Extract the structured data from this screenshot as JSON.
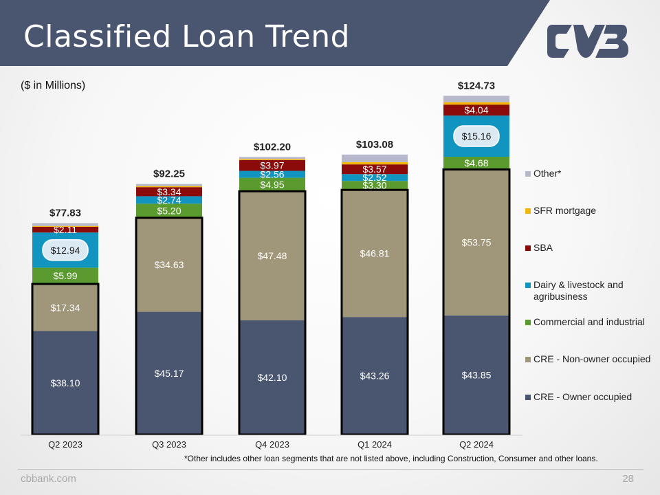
{
  "slide": {
    "title": "Classified Loan Trend",
    "units_note": "($ in Millions)",
    "footnote": "*Other includes other loan segments that are not listed above, including Construction, Consumer and other loans.",
    "footer_site": "cbbank.com",
    "page_number": "28",
    "header_color": "#4a5570"
  },
  "chart_data": {
    "type": "bar",
    "stacked": true,
    "categories": [
      "Q2 2023",
      "Q3 2023",
      "Q4 2023",
      "Q1 2024",
      "Q2 2024"
    ],
    "totals": [
      "$77.83",
      "$92.25",
      "$102.20",
      "$103.08",
      "$124.73"
    ],
    "total_values": [
      77.83,
      92.25,
      102.2,
      103.08,
      124.73
    ],
    "ylim": [
      0,
      130
    ],
    "grid": false,
    "legend_position": "right",
    "series": [
      {
        "name": "CRE - Owner occupied",
        "color": "#4a5570",
        "values": [
          38.1,
          45.17,
          42.1,
          43.26,
          43.85
        ],
        "labels": [
          "$38.10",
          "$45.17",
          "$42.10",
          "$43.26",
          "$43.85"
        ]
      },
      {
        "name": "CRE - Non-owner occupied",
        "color": "#a0977a",
        "values": [
          17.34,
          34.63,
          47.48,
          46.81,
          53.75
        ],
        "labels": [
          "$17.34",
          "$34.63",
          "$47.48",
          "$46.81",
          "$53.75"
        ]
      },
      {
        "name": "Commercial and industrial",
        "color": "#5b9a2f",
        "values": [
          5.99,
          5.2,
          4.95,
          3.3,
          4.68
        ],
        "labels": [
          "$5.99",
          "$5.20",
          "$4.95",
          "$3.30",
          "$4.68"
        ]
      },
      {
        "name": "Dairy & livestock and agribusiness",
        "color": "#1294c0",
        "values": [
          12.94,
          2.74,
          2.56,
          2.52,
          15.16
        ],
        "labels": [
          "$12.94",
          "$2.74",
          "$2.56",
          "$2.52",
          "$15.16"
        ]
      },
      {
        "name": "SBA",
        "color": "#8b0a0a",
        "values": [
          2.11,
          3.34,
          3.97,
          3.57,
          4.04
        ],
        "labels": [
          "$2.11",
          "$3.34",
          "$3.97",
          "$3.57",
          "$4.04"
        ]
      },
      {
        "name": "SFR mortgage",
        "color": "#f2b705",
        "values": [
          0.3,
          0.4,
          0.4,
          0.8,
          0.9
        ],
        "labels": [
          "",
          "",
          "",
          "",
          ""
        ]
      },
      {
        "name": "Other*",
        "color": "#b7b8cc",
        "values": [
          1.05,
          0.77,
          0.74,
          2.82,
          2.35
        ],
        "labels": [
          "",
          "",
          "",
          "",
          ""
        ]
      }
    ],
    "pill_labels": [
      {
        "series": 3,
        "category": 0
      },
      {
        "series": 3,
        "category": 4
      }
    ],
    "outlined_series": [
      0,
      1
    ]
  }
}
